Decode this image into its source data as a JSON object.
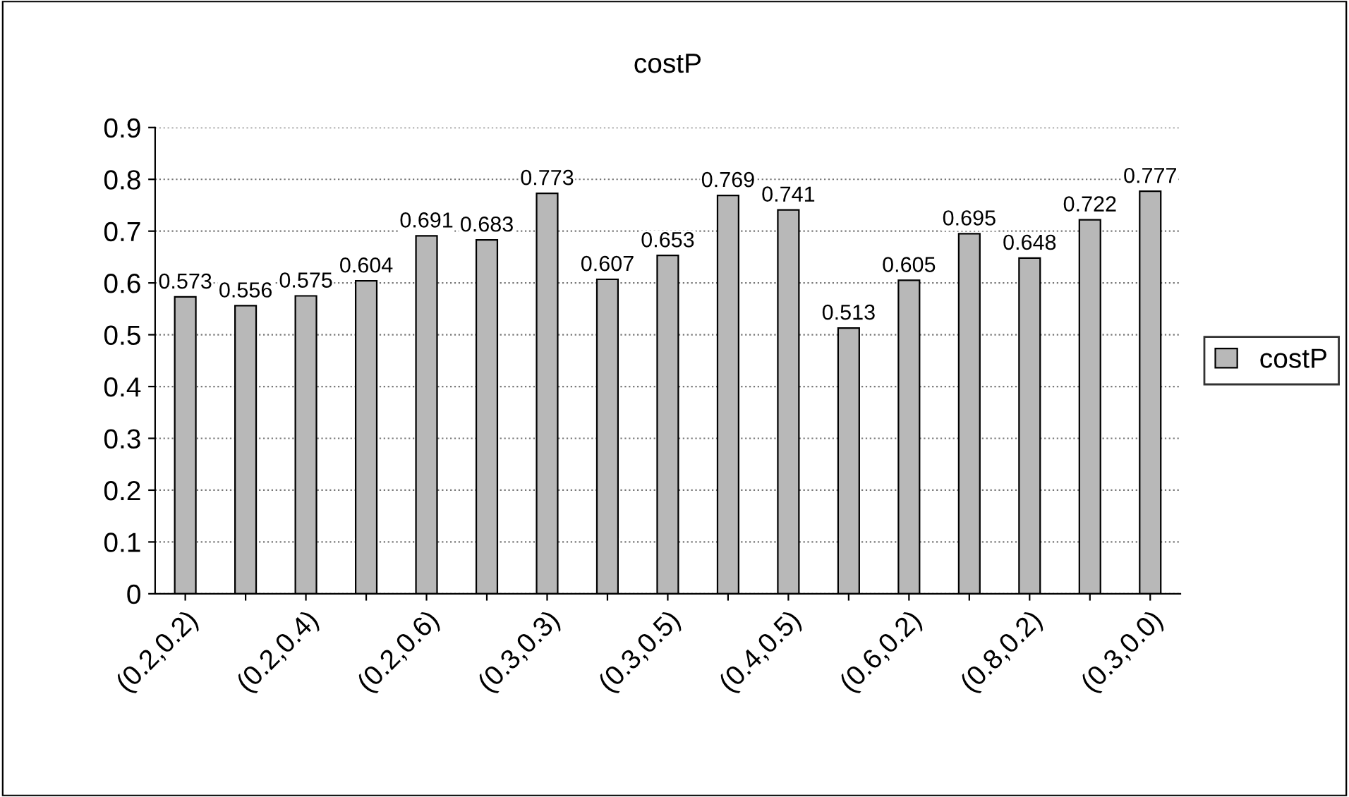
{
  "chart_data": {
    "type": "bar",
    "title": "costP",
    "categories": [
      "(0.2,0.2)",
      null,
      "(0.2,0.4)",
      null,
      "(0.2,0.6)",
      null,
      "(0.3,0.3)",
      null,
      "(0.3,0.5)",
      null,
      "(0.4,0.5)",
      null,
      "(0.6,0.2)",
      null,
      "(0.8,0.2)",
      null,
      "(0.3,0.0)"
    ],
    "series": [
      {
        "name": "costP",
        "color": "#b8b8b8",
        "values": [
          0.573,
          0.556,
          0.575,
          0.604,
          0.691,
          0.683,
          0.773,
          0.607,
          0.653,
          0.769,
          0.741,
          0.513,
          0.605,
          0.695,
          0.648,
          0.722,
          0.777
        ]
      }
    ],
    "ylim": [
      0,
      0.9
    ],
    "yticks": [
      0,
      0.1,
      0.2,
      0.3,
      0.4,
      0.5,
      0.6,
      0.7,
      0.8,
      0.9
    ],
    "grid": "y",
    "legend": "right",
    "data_labels": true
  }
}
